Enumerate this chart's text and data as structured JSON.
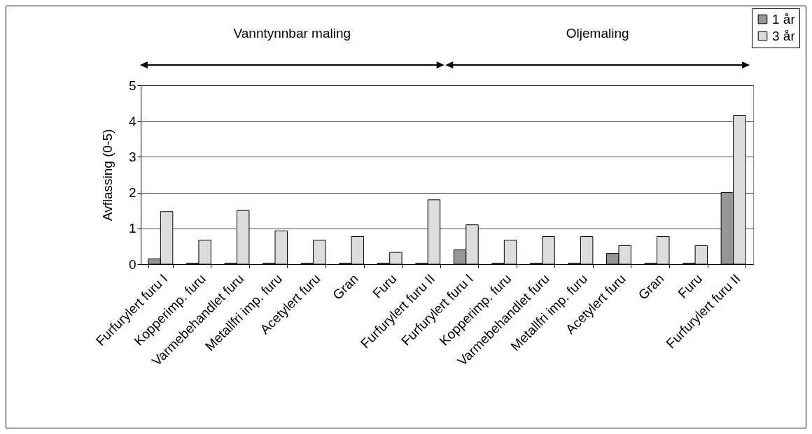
{
  "chart_data": {
    "type": "bar",
    "ylabel": "Avflassing (0-5)",
    "categories": [
      "Furfurylert furu I",
      "Kopperimp. furu",
      "Varmebehandlet furu",
      "Metallfri imp. furu",
      "Acetylert furu",
      "Gran",
      "Furu",
      "Furfurylert furu II",
      "Furfurylert furu I",
      "Kopperimp. furu",
      "Varmebehandlet furu",
      "Metallfri imp. furu",
      "Acetylert furu",
      "Gran",
      "Furu",
      "Furfurylert furu II"
    ],
    "series": [
      {
        "name": "1 år",
        "color": "#969696",
        "values": [
          0.15,
          0.03,
          0.03,
          0.03,
          0.03,
          0.03,
          0.03,
          0.03,
          0.4,
          0.03,
          0.03,
          0.03,
          0.3,
          0.03,
          0.03,
          2.0
        ]
      },
      {
        "name": "3 år",
        "color": "#dcdcdc",
        "values": [
          1.47,
          0.67,
          1.5,
          0.93,
          0.67,
          0.77,
          0.33,
          1.8,
          1.1,
          0.67,
          0.77,
          0.77,
          0.52,
          0.77,
          0.52,
          4.15
        ]
      }
    ],
    "ylim": [
      0,
      5
    ],
    "yticks": [
      0,
      1,
      2,
      3,
      4,
      5
    ],
    "grid": "y",
    "legend": "top right",
    "annotations": [
      "Vanntynnbar maling",
      "Oljemaling"
    ]
  }
}
